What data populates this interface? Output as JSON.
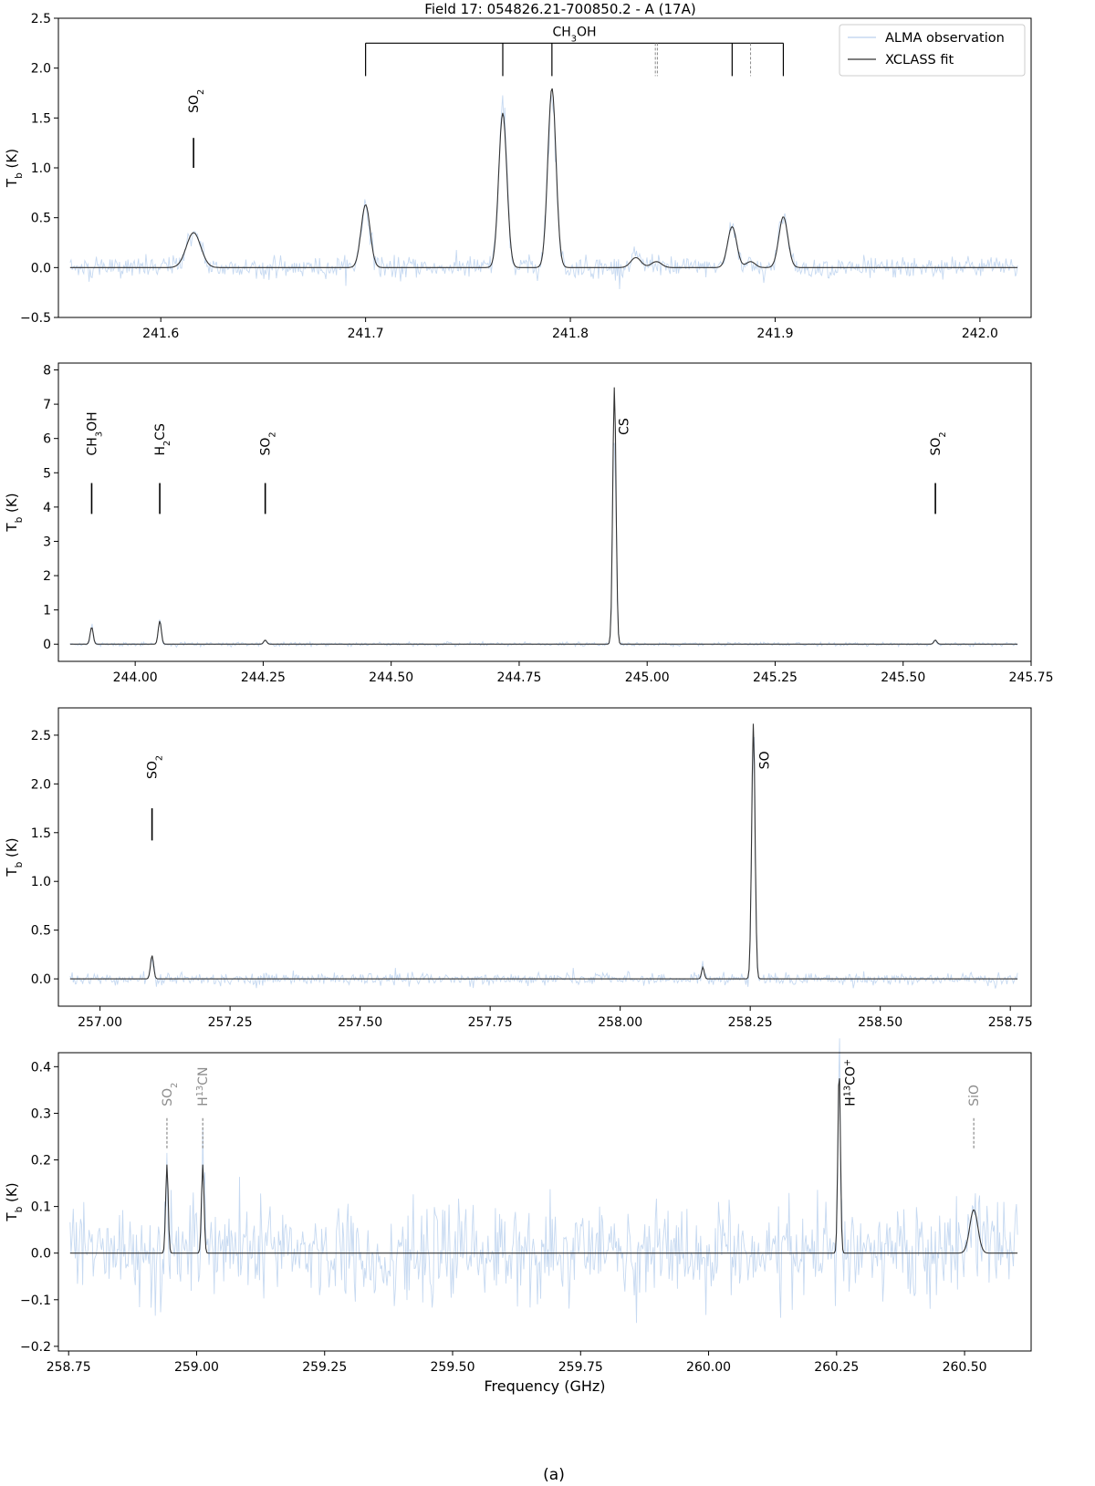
{
  "figure": {
    "title": "Field 17: 054826.21-700850.2 - A (17A)",
    "caption": "(a)",
    "colors": {
      "observation": "#c6d9f1",
      "fit": "#333333",
      "tentative": "#8c8c8c",
      "frame": "#000000"
    }
  },
  "chart_data": [
    {
      "type": "line",
      "panel": 1,
      "xlim": [
        241.55,
        242.025
      ],
      "ylim": [
        -0.5,
        2.5
      ],
      "xticks": [
        "241.6",
        "241.7",
        "241.8",
        "241.9",
        "242.0"
      ],
      "yticks": [
        "−0.5",
        "0.0",
        "0.5",
        "1.0",
        "1.5",
        "2.0",
        "2.5"
      ],
      "ylabel": "T_b (K)",
      "xlabel": "",
      "noise": 0.06,
      "legend": {
        "position": "top-right",
        "entries": [
          {
            "label": "ALMA observation"
          },
          {
            "label": "XCLASS fit"
          }
        ]
      },
      "peaks": [
        {
          "x": 241.616,
          "amp": 0.35,
          "width": 0.0035
        },
        {
          "x": 241.7,
          "amp": 0.63,
          "width": 0.0022
        },
        {
          "x": 241.767,
          "amp": 1.55,
          "width": 0.002
        },
        {
          "x": 241.791,
          "amp": 1.8,
          "width": 0.002
        },
        {
          "x": 241.832,
          "amp": 0.1,
          "width": 0.0025
        },
        {
          "x": 241.842,
          "amp": 0.06,
          "width": 0.0025
        },
        {
          "x": 241.879,
          "amp": 0.41,
          "width": 0.0022
        },
        {
          "x": 241.888,
          "amp": 0.06,
          "width": 0.0022
        },
        {
          "x": 241.904,
          "amp": 0.51,
          "width": 0.0022
        }
      ],
      "lines": [
        {
          "label": "SO2",
          "x": 241.616,
          "tick_y": [
            1.0,
            1.3
          ],
          "label_y": 1.55,
          "style": "solid"
        }
      ],
      "bracket": {
        "label": "CH3OH",
        "y": 2.25,
        "solid_x": [
          241.7,
          241.767,
          241.791,
          241.879,
          241.904
        ],
        "dashed_x": [
          241.8415,
          241.8425,
          241.888
        ],
        "drop_to": 1.92,
        "dashed_drop_to": 1.92
      }
    },
    {
      "type": "line",
      "panel": 2,
      "xlim": [
        243.85,
        245.75
      ],
      "ylim": [
        -0.5,
        8.2
      ],
      "xticks": [
        "244.00",
        "244.25",
        "244.50",
        "244.75",
        "245.00",
        "245.25",
        "245.50",
        "245.75"
      ],
      "yticks": [
        "0",
        "1",
        "2",
        "3",
        "4",
        "5",
        "6",
        "7",
        "8"
      ],
      "ylabel": "T_b (K)",
      "xlabel": "",
      "noise": 0.03,
      "peaks": [
        {
          "x": 243.915,
          "amp": 0.5,
          "width": 0.003
        },
        {
          "x": 244.048,
          "amp": 0.68,
          "width": 0.003
        },
        {
          "x": 244.254,
          "amp": 0.12,
          "width": 0.003
        },
        {
          "x": 244.936,
          "amp": 7.5,
          "width": 0.0032
        },
        {
          "x": 245.563,
          "amp": 0.12,
          "width": 0.003
        }
      ],
      "lines": [
        {
          "label": "CH3OH",
          "x": 243.915,
          "tick_y": [
            3.8,
            4.7
          ],
          "label_y": 5.5,
          "style": "solid"
        },
        {
          "label": "H2CS",
          "x": 244.048,
          "tick_y": [
            3.8,
            4.7
          ],
          "label_y": 5.5,
          "style": "solid"
        },
        {
          "label": "SO2",
          "x": 244.254,
          "tick_y": [
            3.8,
            4.7
          ],
          "label_y": 5.5,
          "style": "solid"
        },
        {
          "label": "CS",
          "x": 244.936,
          "tick_y": null,
          "label_y": 6.1,
          "style": "solid",
          "label_dx": 10
        },
        {
          "label": "SO2",
          "x": 245.563,
          "tick_y": [
            3.8,
            4.7
          ],
          "label_y": 5.5,
          "style": "solid"
        }
      ]
    },
    {
      "type": "line",
      "panel": 3,
      "xlim": [
        256.92,
        258.79
      ],
      "ylim": [
        -0.28,
        2.78
      ],
      "xticks": [
        "257.00",
        "257.25",
        "257.50",
        "257.75",
        "258.00",
        "258.25",
        "258.50",
        "258.75"
      ],
      "yticks": [
        "0.0",
        "0.5",
        "1.0",
        "1.5",
        "2.0",
        "2.5"
      ],
      "ylabel": "T_b (K)",
      "xlabel": "",
      "noise": 0.035,
      "peaks": [
        {
          "x": 257.1,
          "amp": 0.24,
          "width": 0.003
        },
        {
          "x": 258.159,
          "amp": 0.12,
          "width": 0.0025
        },
        {
          "x": 258.256,
          "amp": 2.62,
          "width": 0.0032
        }
      ],
      "lines": [
        {
          "label": "SO2",
          "x": 257.1,
          "tick_y": [
            1.42,
            1.75
          ],
          "label_y": 2.05,
          "style": "solid"
        },
        {
          "label": "SO",
          "x": 258.256,
          "tick_y": null,
          "label_y": 2.15,
          "style": "solid",
          "label_dx": 12
        }
      ]
    },
    {
      "type": "line",
      "panel": 4,
      "xlim": [
        258.73,
        260.63
      ],
      "ylim": [
        -0.21,
        0.43
      ],
      "xticks": [
        "258.75",
        "259.00",
        "259.25",
        "259.50",
        "259.75",
        "260.00",
        "260.25",
        "260.50"
      ],
      "yticks": [
        "−0.2",
        "−0.1",
        "0.0",
        "0.1",
        "0.2",
        "0.3",
        "0.4"
      ],
      "ylabel": "T_b (K)",
      "xlabel": "Frequency (GHz)",
      "noise": 0.055,
      "peaks": [
        {
          "x": 258.942,
          "amp": 0.19,
          "width": 0.0025
        },
        {
          "x": 259.012,
          "amp": 0.19,
          "width": 0.0025
        },
        {
          "x": 260.255,
          "amp": 0.4,
          "width": 0.0025
        },
        {
          "x": 260.518,
          "amp": 0.093,
          "width": 0.008
        }
      ],
      "lines": [
        {
          "label": "SO2",
          "x": 258.942,
          "tick_y": [
            0.225,
            0.29
          ],
          "label_y": 0.315,
          "style": "dashed"
        },
        {
          "label": "H13CN",
          "x": 259.012,
          "tick_y": [
            0.225,
            0.29
          ],
          "label_y": 0.315,
          "style": "dashed"
        },
        {
          "label": "H13CO+",
          "x": 260.255,
          "tick_y": null,
          "label_y": 0.315,
          "style": "solid",
          "label_dx": 12
        },
        {
          "label": "SiO",
          "x": 260.518,
          "tick_y": [
            0.225,
            0.29
          ],
          "label_y": 0.315,
          "style": "dashed"
        }
      ]
    }
  ]
}
